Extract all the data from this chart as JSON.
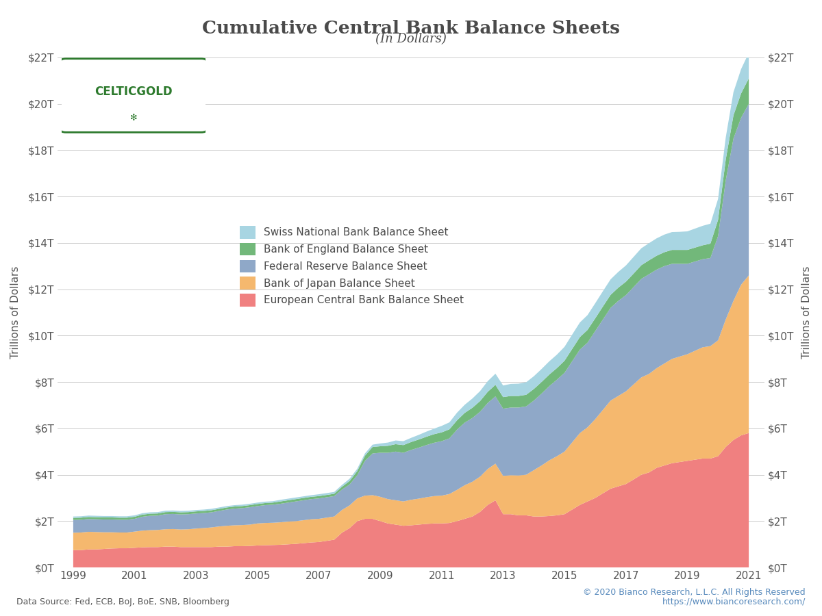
{
  "title": "Cumulative Central Bank Balance Sheets",
  "subtitle": "(In Dollars)",
  "ylabel": "Trillions of Dollars",
  "source_left": "Data Source: Fed, ECB, BoJ, BoE, SNB, Bloomberg",
  "source_right": "© 2020 Bianco Research, L.L.C. All Rights Reserved\nhttps://www.biancoresearch.com/",
  "background_color": "#ffffff",
  "title_color": "#4a4a4a",
  "legend_labels": [
    "Swiss National Bank Balance Sheet",
    "Bank of England Balance Sheet",
    "Federal Reserve Balance Sheet",
    "Bank of Japan Balance Sheet",
    "European Central Bank Balance Sheet"
  ],
  "colors": {
    "snb": "#a8d5e2",
    "boe": "#72b87a",
    "fed": "#8fa8c8",
    "boj": "#f5b86e",
    "ecb": "#f08080"
  },
  "years": [
    1999.0,
    1999.25,
    1999.5,
    1999.75,
    2000.0,
    2000.25,
    2000.5,
    2000.75,
    2001.0,
    2001.25,
    2001.5,
    2001.75,
    2002.0,
    2002.25,
    2002.5,
    2002.75,
    2003.0,
    2003.25,
    2003.5,
    2003.75,
    2004.0,
    2004.25,
    2004.5,
    2004.75,
    2005.0,
    2005.25,
    2005.5,
    2005.75,
    2006.0,
    2006.25,
    2006.5,
    2006.75,
    2007.0,
    2007.25,
    2007.5,
    2007.75,
    2008.0,
    2008.25,
    2008.5,
    2008.75,
    2009.0,
    2009.25,
    2009.5,
    2009.75,
    2010.0,
    2010.25,
    2010.5,
    2010.75,
    2011.0,
    2011.25,
    2011.5,
    2011.75,
    2012.0,
    2012.25,
    2012.5,
    2012.75,
    2013.0,
    2013.25,
    2013.5,
    2013.75,
    2014.0,
    2014.25,
    2014.5,
    2014.75,
    2015.0,
    2015.25,
    2015.5,
    2015.75,
    2016.0,
    2016.25,
    2016.5,
    2016.75,
    2017.0,
    2017.25,
    2017.5,
    2017.75,
    2018.0,
    2018.25,
    2018.5,
    2018.75,
    2019.0,
    2019.25,
    2019.5,
    2019.75,
    2020.0,
    2020.25,
    2020.5,
    2020.75,
    2021.0
  ],
  "ecb": [
    0.75,
    0.75,
    0.78,
    0.78,
    0.8,
    0.82,
    0.83,
    0.83,
    0.85,
    0.87,
    0.88,
    0.88,
    0.9,
    0.9,
    0.88,
    0.88,
    0.88,
    0.88,
    0.88,
    0.9,
    0.9,
    0.92,
    0.92,
    0.93,
    0.95,
    0.96,
    0.97,
    0.98,
    1.0,
    1.02,
    1.05,
    1.08,
    1.1,
    1.15,
    1.2,
    1.5,
    1.7,
    2.0,
    2.1,
    2.1,
    2.0,
    1.9,
    1.85,
    1.8,
    1.82,
    1.85,
    1.88,
    1.9,
    1.9,
    1.92,
    2.0,
    2.1,
    2.2,
    2.4,
    2.7,
    2.9,
    2.3,
    2.3,
    2.25,
    2.25,
    2.2,
    2.2,
    2.22,
    2.25,
    2.3,
    2.5,
    2.7,
    2.85,
    3.0,
    3.2,
    3.4,
    3.5,
    3.6,
    3.8,
    4.0,
    4.1,
    4.3,
    4.4,
    4.5,
    4.55,
    4.6,
    4.65,
    4.7,
    4.7,
    4.8,
    5.2,
    5.5,
    5.7,
    5.8
  ],
  "boj": [
    0.75,
    0.76,
    0.76,
    0.75,
    0.72,
    0.7,
    0.68,
    0.68,
    0.7,
    0.72,
    0.73,
    0.74,
    0.75,
    0.76,
    0.76,
    0.77,
    0.8,
    0.82,
    0.85,
    0.87,
    0.9,
    0.9,
    0.91,
    0.92,
    0.95,
    0.96,
    0.96,
    0.97,
    0.98,
    0.98,
    0.99,
    1.0,
    1.0,
    1.0,
    1.0,
    0.98,
    0.98,
    0.98,
    1.0,
    1.02,
    1.05,
    1.05,
    1.05,
    1.05,
    1.1,
    1.12,
    1.15,
    1.18,
    1.2,
    1.25,
    1.35,
    1.45,
    1.5,
    1.52,
    1.55,
    1.58,
    1.65,
    1.68,
    1.72,
    1.75,
    2.0,
    2.2,
    2.4,
    2.55,
    2.7,
    2.9,
    3.1,
    3.2,
    3.4,
    3.6,
    3.8,
    3.9,
    4.0,
    4.1,
    4.2,
    4.25,
    4.3,
    4.4,
    4.5,
    4.55,
    4.6,
    4.7,
    4.8,
    4.85,
    5.0,
    5.5,
    6.0,
    6.5,
    6.8
  ],
  "fed": [
    0.55,
    0.55,
    0.55,
    0.55,
    0.55,
    0.55,
    0.55,
    0.55,
    0.55,
    0.6,
    0.62,
    0.62,
    0.65,
    0.65,
    0.65,
    0.65,
    0.65,
    0.65,
    0.65,
    0.67,
    0.7,
    0.72,
    0.73,
    0.75,
    0.75,
    0.77,
    0.78,
    0.8,
    0.82,
    0.85,
    0.86,
    0.87,
    0.88,
    0.88,
    0.88,
    0.88,
    0.9,
    1.0,
    1.5,
    1.8,
    1.9,
    2.0,
    2.1,
    2.1,
    2.15,
    2.2,
    2.25,
    2.3,
    2.35,
    2.4,
    2.6,
    2.7,
    2.75,
    2.8,
    2.85,
    2.9,
    2.9,
    2.92,
    2.93,
    2.95,
    3.0,
    3.1,
    3.2,
    3.3,
    3.4,
    3.5,
    3.6,
    3.65,
    3.8,
    3.9,
    4.0,
    4.1,
    4.15,
    4.2,
    4.25,
    4.3,
    4.25,
    4.2,
    4.1,
    4.0,
    3.9,
    3.85,
    3.8,
    3.8,
    4.5,
    6.0,
    7.0,
    7.2,
    7.4
  ],
  "boe": [
    0.09,
    0.09,
    0.09,
    0.09,
    0.09,
    0.09,
    0.09,
    0.09,
    0.09,
    0.09,
    0.09,
    0.09,
    0.09,
    0.09,
    0.09,
    0.09,
    0.09,
    0.09,
    0.09,
    0.09,
    0.09,
    0.09,
    0.09,
    0.09,
    0.09,
    0.09,
    0.09,
    0.1,
    0.1,
    0.1,
    0.1,
    0.1,
    0.1,
    0.1,
    0.1,
    0.12,
    0.15,
    0.18,
    0.22,
    0.28,
    0.28,
    0.3,
    0.32,
    0.33,
    0.34,
    0.35,
    0.36,
    0.37,
    0.38,
    0.39,
    0.4,
    0.42,
    0.44,
    0.46,
    0.48,
    0.5,
    0.5,
    0.5,
    0.5,
    0.5,
    0.5,
    0.5,
    0.5,
    0.5,
    0.52,
    0.53,
    0.54,
    0.55,
    0.55,
    0.56,
    0.56,
    0.57,
    0.58,
    0.58,
    0.59,
    0.6,
    0.6,
    0.6,
    0.6,
    0.6,
    0.6,
    0.6,
    0.6,
    0.62,
    0.7,
    0.9,
    1.0,
    1.05,
    1.1
  ],
  "snb": [
    0.06,
    0.06,
    0.06,
    0.06,
    0.06,
    0.06,
    0.06,
    0.06,
    0.06,
    0.06,
    0.06,
    0.06,
    0.06,
    0.06,
    0.06,
    0.06,
    0.06,
    0.06,
    0.06,
    0.06,
    0.06,
    0.06,
    0.06,
    0.06,
    0.06,
    0.06,
    0.06,
    0.07,
    0.07,
    0.07,
    0.07,
    0.07,
    0.08,
    0.08,
    0.08,
    0.08,
    0.1,
    0.1,
    0.1,
    0.1,
    0.12,
    0.14,
    0.16,
    0.17,
    0.18,
    0.2,
    0.22,
    0.24,
    0.28,
    0.3,
    0.33,
    0.35,
    0.4,
    0.43,
    0.46,
    0.48,
    0.5,
    0.52,
    0.53,
    0.54,
    0.55,
    0.56,
    0.57,
    0.58,
    0.6,
    0.62,
    0.63,
    0.64,
    0.65,
    0.66,
    0.67,
    0.68,
    0.7,
    0.72,
    0.73,
    0.74,
    0.75,
    0.76,
    0.77,
    0.78,
    0.8,
    0.82,
    0.84,
    0.86,
    0.9,
    0.95,
    1.0,
    1.05,
    1.1
  ],
  "ylim": [
    0,
    22
  ],
  "yticks": [
    0,
    2,
    4,
    6,
    8,
    10,
    12,
    14,
    16,
    18,
    20,
    22
  ],
  "xlim_start": 1998.5,
  "xlim_end": 2021.5
}
